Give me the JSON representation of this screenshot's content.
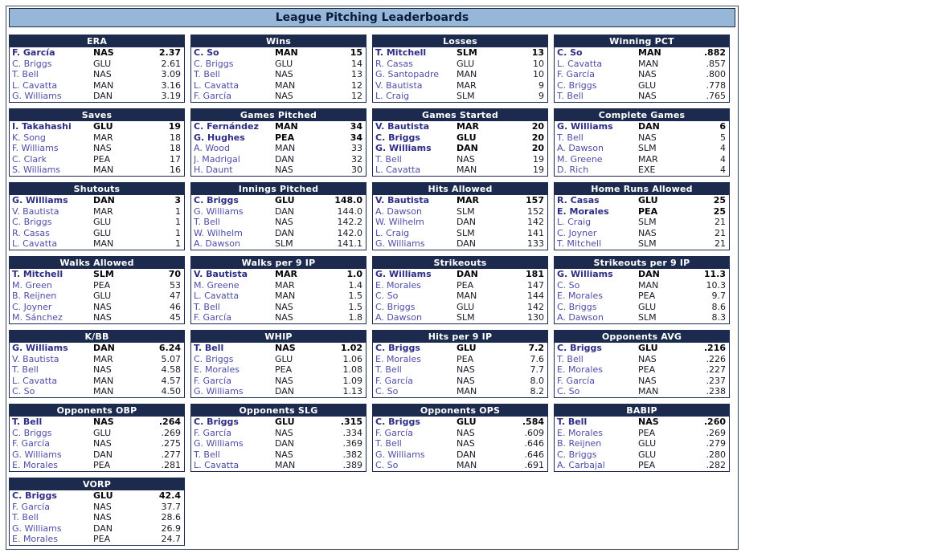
{
  "window_title": "League Pitching Leaderboards",
  "colors": {
    "titlebar_bg": "#96b7d8",
    "board_header_bg": "#1c2b4d",
    "link_color": "#4d4da8",
    "leader_link_color": "#2d2d85",
    "border_color": "#1c2b4d"
  },
  "boards": [
    {
      "title": "ERA",
      "rows": [
        {
          "name": "F. García",
          "team": "NAS",
          "value": "2.37",
          "leader": true
        },
        {
          "name": "C. Briggs",
          "team": "GLU",
          "value": "2.61"
        },
        {
          "name": "T. Bell",
          "team": "NAS",
          "value": "3.09"
        },
        {
          "name": "L. Cavatta",
          "team": "MAN",
          "value": "3.16"
        },
        {
          "name": "G. Williams",
          "team": "DAN",
          "value": "3.19"
        }
      ]
    },
    {
      "title": "Wins",
      "rows": [
        {
          "name": "C. So",
          "team": "MAN",
          "value": "15",
          "leader": true
        },
        {
          "name": "C. Briggs",
          "team": "GLU",
          "value": "14"
        },
        {
          "name": "T. Bell",
          "team": "NAS",
          "value": "13"
        },
        {
          "name": "L. Cavatta",
          "team": "MAN",
          "value": "12"
        },
        {
          "name": "F. García",
          "team": "NAS",
          "value": "12"
        }
      ]
    },
    {
      "title": "Losses",
      "rows": [
        {
          "name": "T. Mitchell",
          "team": "SLM",
          "value": "13",
          "leader": true
        },
        {
          "name": "R. Casas",
          "team": "GLU",
          "value": "10"
        },
        {
          "name": "G. Santopadre",
          "team": "MAN",
          "value": "10"
        },
        {
          "name": "V. Bautista",
          "team": "MAR",
          "value": "9"
        },
        {
          "name": "L. Craig",
          "team": "SLM",
          "value": "9"
        }
      ]
    },
    {
      "title": "Winning PCT",
      "rows": [
        {
          "name": "C. So",
          "team": "MAN",
          "value": ".882",
          "leader": true
        },
        {
          "name": "L. Cavatta",
          "team": "MAN",
          "value": ".857"
        },
        {
          "name": "F. García",
          "team": "NAS",
          "value": ".800"
        },
        {
          "name": "C. Briggs",
          "team": "GLU",
          "value": ".778"
        },
        {
          "name": "T. Bell",
          "team": "NAS",
          "value": ".765"
        }
      ]
    },
    {
      "title": "Saves",
      "rows": [
        {
          "name": "I. Takahashi",
          "team": "GLU",
          "value": "19",
          "leader": true
        },
        {
          "name": "K. Song",
          "team": "MAR",
          "value": "18"
        },
        {
          "name": "F. Williams",
          "team": "NAS",
          "value": "18"
        },
        {
          "name": "C. Clark",
          "team": "PEA",
          "value": "17"
        },
        {
          "name": "S. Williams",
          "team": "MAN",
          "value": "16"
        }
      ]
    },
    {
      "title": "Games Pitched",
      "rows": [
        {
          "name": "C. Fernández",
          "team": "MAN",
          "value": "34",
          "leader": true
        },
        {
          "name": "G. Hughes",
          "team": "PEA",
          "value": "34",
          "leader": true
        },
        {
          "name": "A. Wood",
          "team": "MAN",
          "value": "33"
        },
        {
          "name": "J. Madrigal",
          "team": "DAN",
          "value": "32"
        },
        {
          "name": "H. Daunt",
          "team": "NAS",
          "value": "30"
        }
      ]
    },
    {
      "title": "Games Started",
      "rows": [
        {
          "name": "V. Bautista",
          "team": "MAR",
          "value": "20",
          "leader": true
        },
        {
          "name": "C. Briggs",
          "team": "GLU",
          "value": "20",
          "leader": true
        },
        {
          "name": "G. Williams",
          "team": "DAN",
          "value": "20",
          "leader": true
        },
        {
          "name": "T. Bell",
          "team": "NAS",
          "value": "19"
        },
        {
          "name": "L. Cavatta",
          "team": "MAN",
          "value": "19"
        }
      ]
    },
    {
      "title": "Complete Games",
      "rows": [
        {
          "name": "G. Williams",
          "team": "DAN",
          "value": "6",
          "leader": true
        },
        {
          "name": "T. Bell",
          "team": "NAS",
          "value": "5"
        },
        {
          "name": "A. Dawson",
          "team": "SLM",
          "value": "4"
        },
        {
          "name": "M. Greene",
          "team": "MAR",
          "value": "4"
        },
        {
          "name": "D. Rich",
          "team": "EXE",
          "value": "4"
        }
      ]
    },
    {
      "title": "Shutouts",
      "rows": [
        {
          "name": "G. Williams",
          "team": "DAN",
          "value": "3",
          "leader": true
        },
        {
          "name": "V. Bautista",
          "team": "MAR",
          "value": "1"
        },
        {
          "name": "C. Briggs",
          "team": "GLU",
          "value": "1"
        },
        {
          "name": "R. Casas",
          "team": "GLU",
          "value": "1"
        },
        {
          "name": "L. Cavatta",
          "team": "MAN",
          "value": "1"
        }
      ]
    },
    {
      "title": "Innings Pitched",
      "rows": [
        {
          "name": "C. Briggs",
          "team": "GLU",
          "value": "148.0",
          "leader": true
        },
        {
          "name": "G. Williams",
          "team": "DAN",
          "value": "144.0"
        },
        {
          "name": "T. Bell",
          "team": "NAS",
          "value": "142.2"
        },
        {
          "name": "W. Wilhelm",
          "team": "DAN",
          "value": "142.0"
        },
        {
          "name": "A. Dawson",
          "team": "SLM",
          "value": "141.1"
        }
      ]
    },
    {
      "title": "Hits Allowed",
      "rows": [
        {
          "name": "V. Bautista",
          "team": "MAR",
          "value": "157",
          "leader": true
        },
        {
          "name": "A. Dawson",
          "team": "SLM",
          "value": "152"
        },
        {
          "name": "W. Wilhelm",
          "team": "DAN",
          "value": "142"
        },
        {
          "name": "L. Craig",
          "team": "SLM",
          "value": "141"
        },
        {
          "name": "G. Williams",
          "team": "DAN",
          "value": "133"
        }
      ]
    },
    {
      "title": "Home Runs Allowed",
      "rows": [
        {
          "name": "R. Casas",
          "team": "GLU",
          "value": "25",
          "leader": true
        },
        {
          "name": "E. Morales",
          "team": "PEA",
          "value": "25",
          "leader": true
        },
        {
          "name": "L. Craig",
          "team": "SLM",
          "value": "21"
        },
        {
          "name": "C. Joyner",
          "team": "NAS",
          "value": "21"
        },
        {
          "name": "T. Mitchell",
          "team": "SLM",
          "value": "21"
        }
      ]
    },
    {
      "title": "Walks Allowed",
      "rows": [
        {
          "name": "T. Mitchell",
          "team": "SLM",
          "value": "70",
          "leader": true
        },
        {
          "name": "M. Green",
          "team": "PEA",
          "value": "53"
        },
        {
          "name": "B. Reijnen",
          "team": "GLU",
          "value": "47"
        },
        {
          "name": "C. Joyner",
          "team": "NAS",
          "value": "46"
        },
        {
          "name": "M. Sánchez",
          "team": "NAS",
          "value": "45"
        }
      ]
    },
    {
      "title": "Walks per 9 IP",
      "rows": [
        {
          "name": "V. Bautista",
          "team": "MAR",
          "value": "1.0",
          "leader": true
        },
        {
          "name": "M. Greene",
          "team": "MAR",
          "value": "1.4"
        },
        {
          "name": "L. Cavatta",
          "team": "MAN",
          "value": "1.5"
        },
        {
          "name": "T. Bell",
          "team": "NAS",
          "value": "1.5"
        },
        {
          "name": "F. García",
          "team": "NAS",
          "value": "1.8"
        }
      ]
    },
    {
      "title": "Strikeouts",
      "rows": [
        {
          "name": "G. Williams",
          "team": "DAN",
          "value": "181",
          "leader": true
        },
        {
          "name": "E. Morales",
          "team": "PEA",
          "value": "147"
        },
        {
          "name": "C. So",
          "team": "MAN",
          "value": "144"
        },
        {
          "name": "C. Briggs",
          "team": "GLU",
          "value": "142"
        },
        {
          "name": "A. Dawson",
          "team": "SLM",
          "value": "130"
        }
      ]
    },
    {
      "title": "Strikeouts per 9 IP",
      "rows": [
        {
          "name": "G. Williams",
          "team": "DAN",
          "value": "11.3",
          "leader": true
        },
        {
          "name": "C. So",
          "team": "MAN",
          "value": "10.3"
        },
        {
          "name": "E. Morales",
          "team": "PEA",
          "value": "9.7"
        },
        {
          "name": "C. Briggs",
          "team": "GLU",
          "value": "8.6"
        },
        {
          "name": "A. Dawson",
          "team": "SLM",
          "value": "8.3"
        }
      ]
    },
    {
      "title": "K/BB",
      "rows": [
        {
          "name": "G. Williams",
          "team": "DAN",
          "value": "6.24",
          "leader": true
        },
        {
          "name": "V. Bautista",
          "team": "MAR",
          "value": "5.07"
        },
        {
          "name": "T. Bell",
          "team": "NAS",
          "value": "4.58"
        },
        {
          "name": "L. Cavatta",
          "team": "MAN",
          "value": "4.57"
        },
        {
          "name": "C. So",
          "team": "MAN",
          "value": "4.50"
        }
      ]
    },
    {
      "title": "WHIP",
      "rows": [
        {
          "name": "T. Bell",
          "team": "NAS",
          "value": "1.02",
          "leader": true
        },
        {
          "name": "C. Briggs",
          "team": "GLU",
          "value": "1.06"
        },
        {
          "name": "E. Morales",
          "team": "PEA",
          "value": "1.08"
        },
        {
          "name": "F. García",
          "team": "NAS",
          "value": "1.09"
        },
        {
          "name": "G. Williams",
          "team": "DAN",
          "value": "1.13"
        }
      ]
    },
    {
      "title": "Hits per 9 IP",
      "rows": [
        {
          "name": "C. Briggs",
          "team": "GLU",
          "value": "7.2",
          "leader": true
        },
        {
          "name": "E. Morales",
          "team": "PEA",
          "value": "7.6"
        },
        {
          "name": "T. Bell",
          "team": "NAS",
          "value": "7.7"
        },
        {
          "name": "F. García",
          "team": "NAS",
          "value": "8.0"
        },
        {
          "name": "C. So",
          "team": "MAN",
          "value": "8.2"
        }
      ]
    },
    {
      "title": "Opponents AVG",
      "rows": [
        {
          "name": "C. Briggs",
          "team": "GLU",
          "value": ".216",
          "leader": true
        },
        {
          "name": "T. Bell",
          "team": "NAS",
          "value": ".226"
        },
        {
          "name": "E. Morales",
          "team": "PEA",
          "value": ".227"
        },
        {
          "name": "F. García",
          "team": "NAS",
          "value": ".237"
        },
        {
          "name": "C. So",
          "team": "MAN",
          "value": ".238"
        }
      ]
    },
    {
      "title": "Opponents OBP",
      "rows": [
        {
          "name": "T. Bell",
          "team": "NAS",
          "value": ".264",
          "leader": true
        },
        {
          "name": "C. Briggs",
          "team": "GLU",
          "value": ".269"
        },
        {
          "name": "F. García",
          "team": "NAS",
          "value": ".275"
        },
        {
          "name": "G. Williams",
          "team": "DAN",
          "value": ".277"
        },
        {
          "name": "E. Morales",
          "team": "PEA",
          "value": ".281"
        }
      ]
    },
    {
      "title": "Opponents SLG",
      "rows": [
        {
          "name": "C. Briggs",
          "team": "GLU",
          "value": ".315",
          "leader": true
        },
        {
          "name": "F. García",
          "team": "NAS",
          "value": ".334"
        },
        {
          "name": "G. Williams",
          "team": "DAN",
          "value": ".369"
        },
        {
          "name": "T. Bell",
          "team": "NAS",
          "value": ".382"
        },
        {
          "name": "L. Cavatta",
          "team": "MAN",
          "value": ".389"
        }
      ]
    },
    {
      "title": "Opponents OPS",
      "rows": [
        {
          "name": "C. Briggs",
          "team": "GLU",
          "value": ".584",
          "leader": true
        },
        {
          "name": "F. García",
          "team": "NAS",
          "value": ".609"
        },
        {
          "name": "T. Bell",
          "team": "NAS",
          "value": ".646"
        },
        {
          "name": "G. Williams",
          "team": "DAN",
          "value": ".646"
        },
        {
          "name": "C. So",
          "team": "MAN",
          "value": ".691"
        }
      ]
    },
    {
      "title": "BABIP",
      "rows": [
        {
          "name": "T. Bell",
          "team": "NAS",
          "value": ".260",
          "leader": true
        },
        {
          "name": "E. Morales",
          "team": "PEA",
          "value": ".269"
        },
        {
          "name": "B. Reijnen",
          "team": "GLU",
          "value": ".279"
        },
        {
          "name": "C. Briggs",
          "team": "GLU",
          "value": ".280"
        },
        {
          "name": "A. Carbajal",
          "team": "PEA",
          "value": ".282"
        }
      ]
    },
    {
      "title": "VORP",
      "rows": [
        {
          "name": "C. Briggs",
          "team": "GLU",
          "value": "42.4",
          "leader": true
        },
        {
          "name": "F. García",
          "team": "NAS",
          "value": "37.7"
        },
        {
          "name": "T. Bell",
          "team": "NAS",
          "value": "28.6"
        },
        {
          "name": "G. Williams",
          "team": "DAN",
          "value": "26.9"
        },
        {
          "name": "E. Morales",
          "team": "PEA",
          "value": "24.7"
        }
      ]
    }
  ]
}
